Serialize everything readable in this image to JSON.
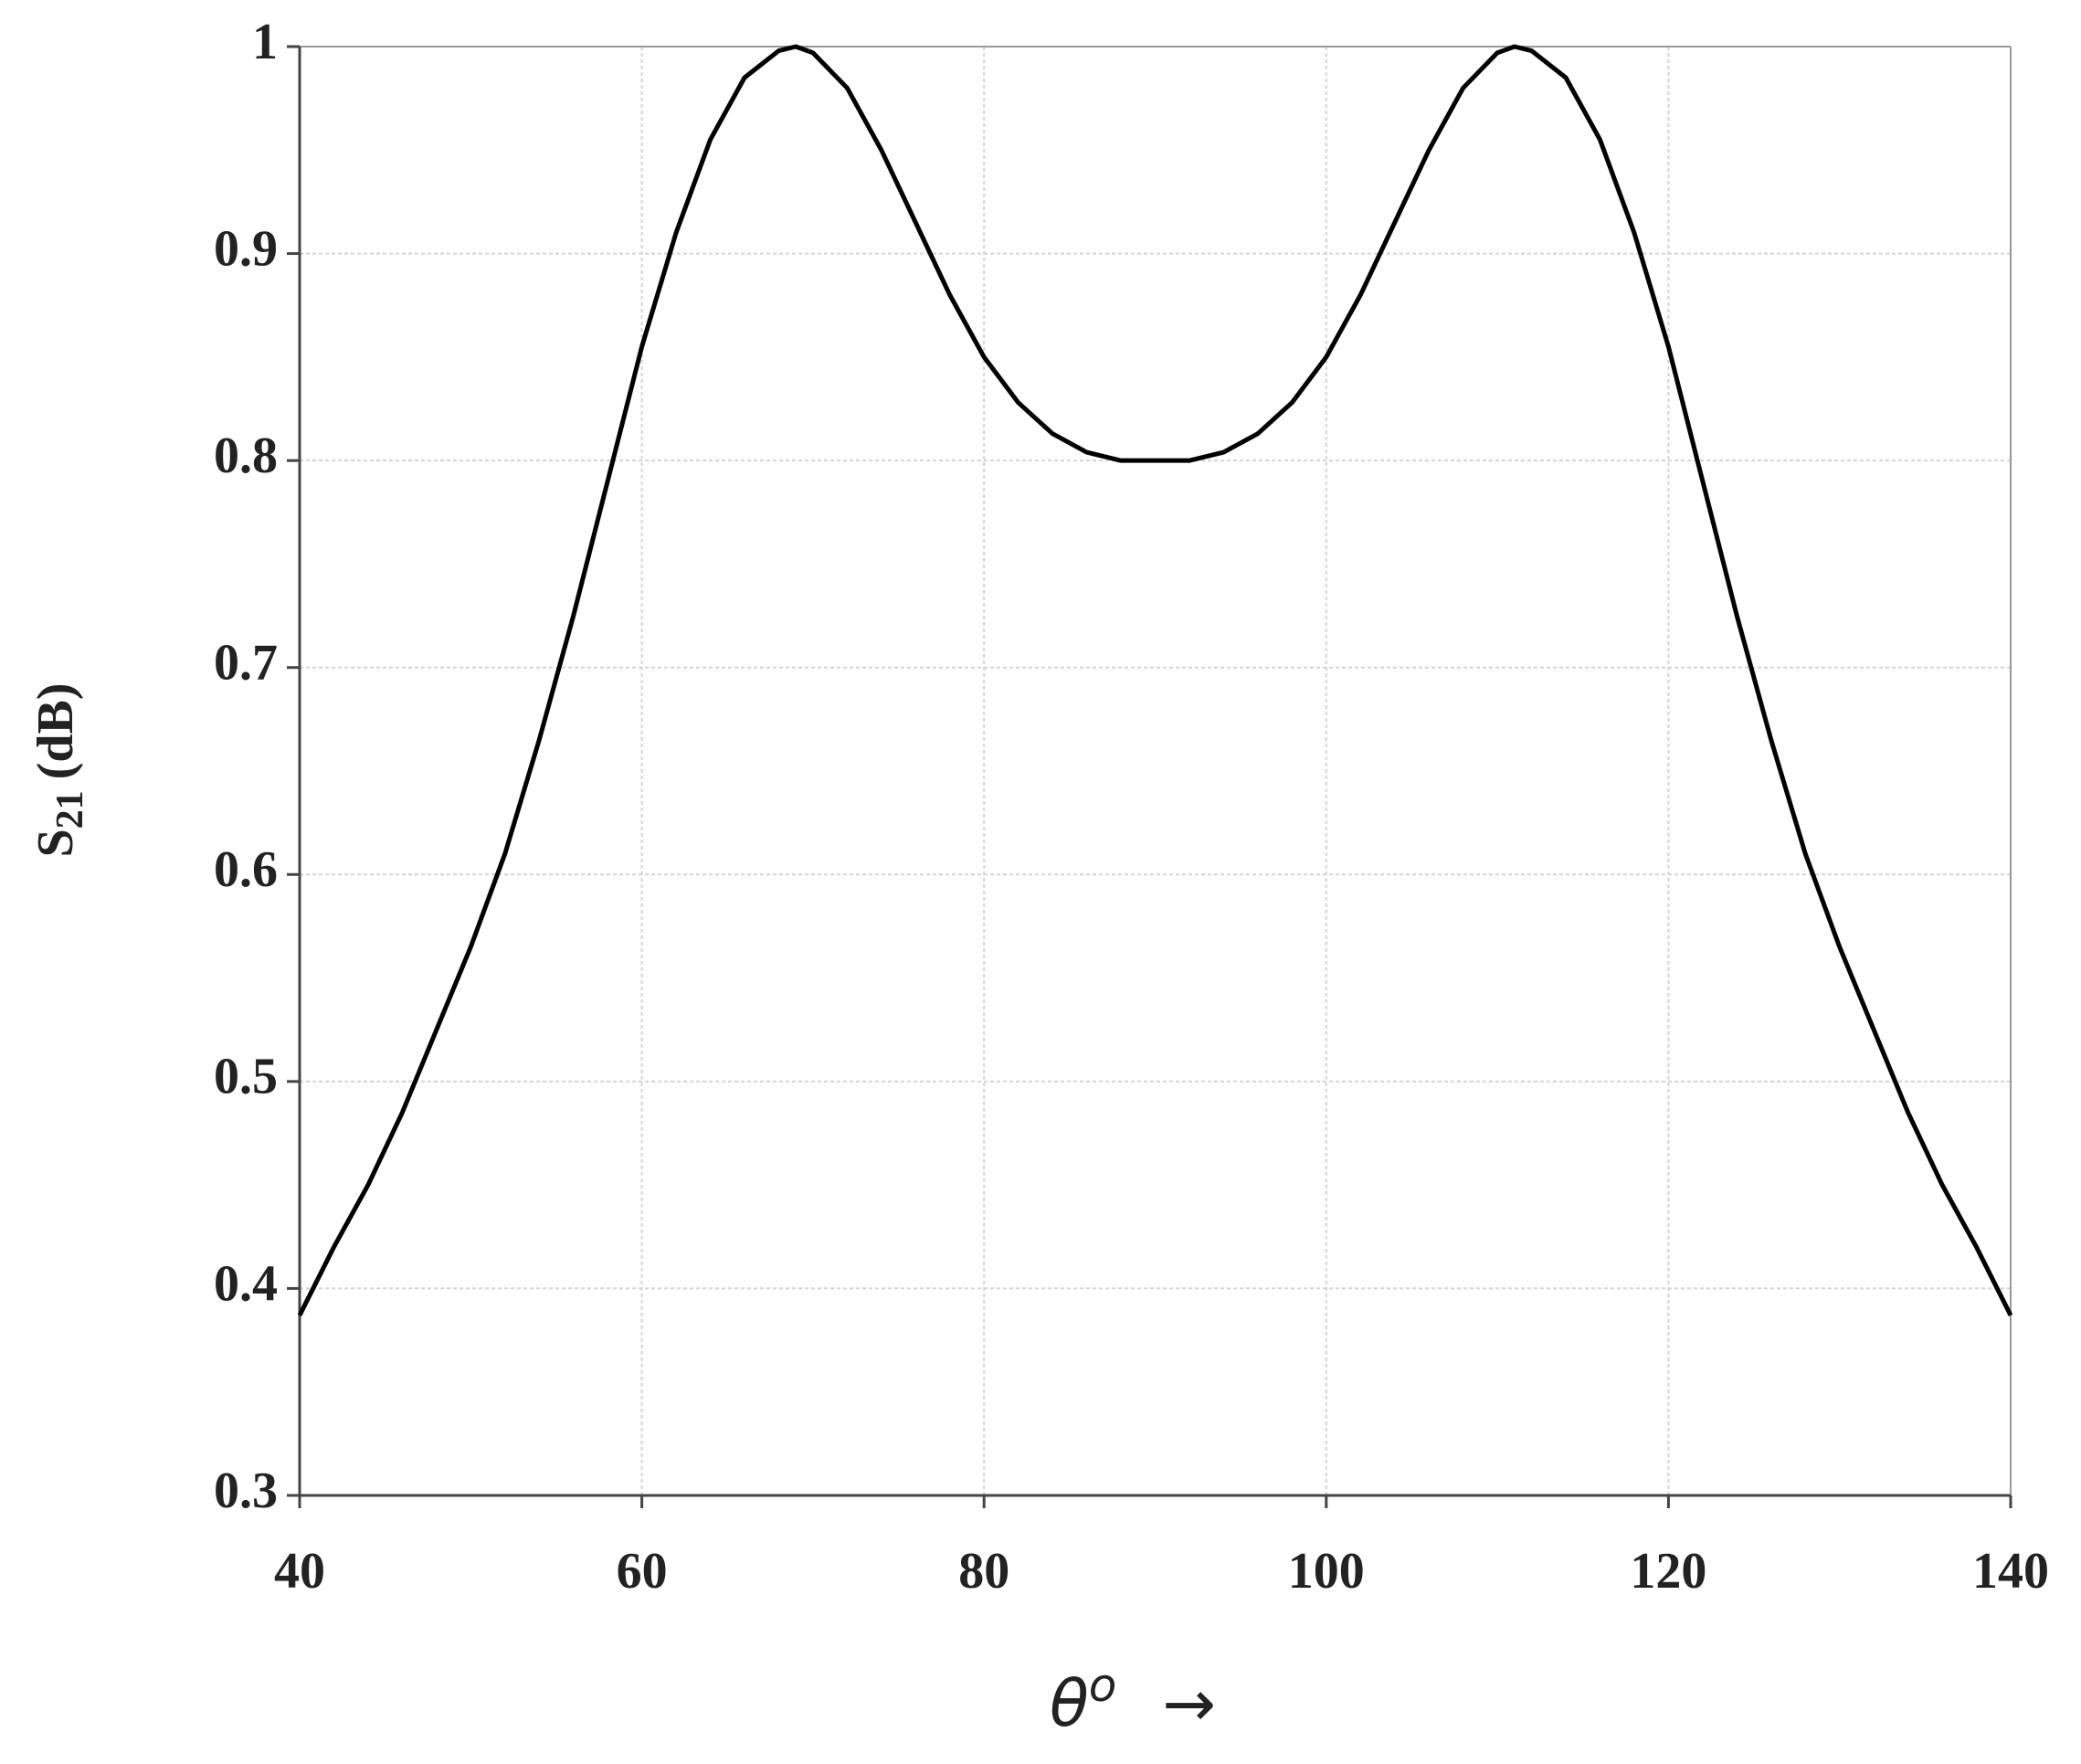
{
  "chart_data": {
    "type": "line",
    "ylabel": [
      "S",
      "21",
      "(dB)"
    ],
    "xlabel": [
      "θ",
      "o",
      "→"
    ],
    "xlim": [
      40,
      140
    ],
    "xticks": [
      40,
      60,
      80,
      100,
      120,
      140
    ],
    "ylim": [
      0.3,
      1
    ],
    "yticks": [
      0.3,
      0.4,
      0.5,
      0.6,
      0.7,
      0.8,
      0.9,
      1
    ],
    "grid": true,
    "series": [
      {
        "color": "#000000",
        "x": [
          40,
          42,
          44,
          46,
          48,
          50,
          52,
          54,
          56,
          58,
          60,
          62,
          64,
          66,
          68,
          69,
          70,
          72,
          74,
          76,
          78,
          80,
          82,
          84,
          86,
          88,
          90,
          92,
          94,
          96,
          98,
          100,
          102,
          104,
          106,
          108,
          110,
          111,
          112,
          114,
          116,
          118,
          120,
          122,
          124,
          126,
          128,
          130,
          132,
          134,
          136,
          138,
          140
        ],
        "values": [
          0.387,
          0.42,
          0.45,
          0.485,
          0.525,
          0.565,
          0.61,
          0.665,
          0.725,
          0.79,
          0.855,
          0.91,
          0.955,
          0.985,
          0.998,
          1.0,
          0.997,
          0.98,
          0.95,
          0.915,
          0.88,
          0.85,
          0.828,
          0.813,
          0.804,
          0.8,
          0.8,
          0.8,
          0.804,
          0.813,
          0.828,
          0.85,
          0.88,
          0.915,
          0.95,
          0.98,
          0.997,
          1.0,
          0.998,
          0.985,
          0.955,
          0.91,
          0.855,
          0.79,
          0.725,
          0.665,
          0.61,
          0.565,
          0.525,
          0.485,
          0.45,
          0.42,
          0.387
        ]
      }
    ]
  }
}
